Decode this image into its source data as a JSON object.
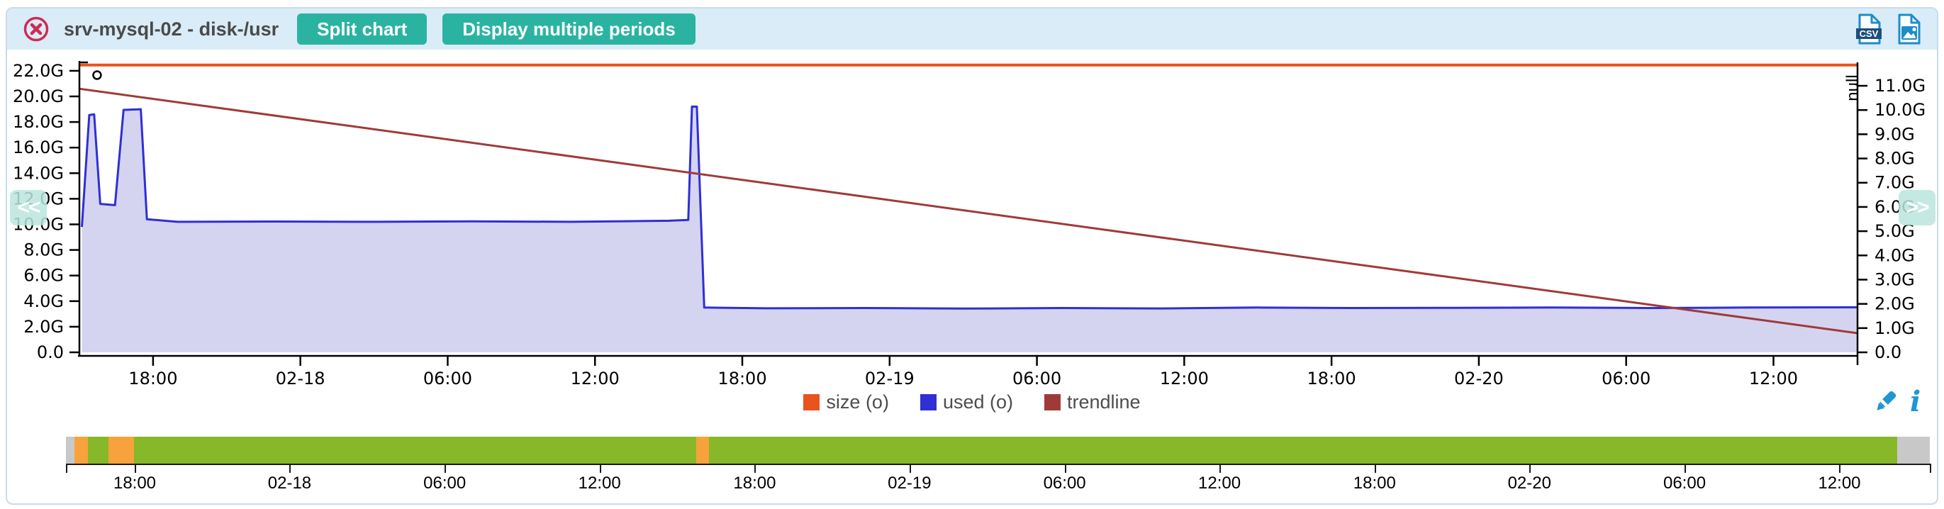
{
  "header": {
    "title": "srv-mysql-02 - disk-/usr",
    "split_button": "Split chart",
    "multi_periods_button": "Display multiple periods",
    "export": {
      "csv_label": "CSV"
    }
  },
  "nav": {
    "prev": "<<",
    "next": ">>"
  },
  "legend": {
    "items": [
      {
        "label": "size (o)",
        "color": "#e9531d"
      },
      {
        "label": "used (o)",
        "color": "#2f2fd4"
      },
      {
        "label": "trendline",
        "color": "#9e3b39"
      }
    ]
  },
  "chart_data": {
    "type": "area",
    "title": "srv-mysql-02 - disk-/usr",
    "x_axis": {
      "unit": "time",
      "tick_interval_hours": 6,
      "hours_span": 72.4,
      "ticks": [
        {
          "h": 3,
          "label": "18:00"
        },
        {
          "h": 9,
          "label": "02-18"
        },
        {
          "h": 15,
          "label": "06:00"
        },
        {
          "h": 21,
          "label": "12:00"
        },
        {
          "h": 27,
          "label": "18:00"
        },
        {
          "h": 33,
          "label": "02-19"
        },
        {
          "h": 39,
          "label": "06:00"
        },
        {
          "h": 45,
          "label": "12:00"
        },
        {
          "h": 51,
          "label": "18:00"
        },
        {
          "h": 57,
          "label": "02-20"
        },
        {
          "h": 63,
          "label": "06:00"
        },
        {
          "h": 69,
          "label": "12:00"
        }
      ]
    },
    "left_axis": {
      "unit": "G",
      "min": 0,
      "max": 22.9,
      "tick_step": 2,
      "tick_labels": [
        "0.0",
        "2.0G",
        "4.0G",
        "6.0G",
        "8.0G",
        "10.0G",
        "12.0G",
        "14.0G",
        "16.0G",
        "18.0G",
        "20.0G",
        "22.0G"
      ]
    },
    "right_axis": {
      "label": "null",
      "min": 0,
      "max": 11.6,
      "tick_step": 1,
      "tick_labels": [
        "0.0",
        "1.0G",
        "2.0G",
        "3.0G",
        "4.0G",
        "5.0G",
        "6.0G",
        "7.0G",
        "8.0G",
        "9.0G",
        "10.0G",
        "11.0G"
      ]
    },
    "series": [
      {
        "name": "size (o)",
        "type": "line",
        "color": "#e9531d",
        "width": 4,
        "points": [
          [
            0,
            22.45
          ],
          [
            72.4,
            22.45
          ]
        ]
      },
      {
        "name": "used (o)",
        "type": "area",
        "color": "#2f2fd4",
        "fill": "#d4d4f1",
        "width": 3,
        "points": [
          [
            0.1,
            9.8
          ],
          [
            0.4,
            18.55
          ],
          [
            0.6,
            18.6
          ],
          [
            0.85,
            11.6
          ],
          [
            1.45,
            11.5
          ],
          [
            1.8,
            18.95
          ],
          [
            2.5,
            19.0
          ],
          [
            2.75,
            10.4
          ],
          [
            4,
            10.2
          ],
          [
            8,
            10.22
          ],
          [
            12,
            10.2
          ],
          [
            16,
            10.24
          ],
          [
            20,
            10.2
          ],
          [
            24,
            10.28
          ],
          [
            24.8,
            10.35
          ],
          [
            24.95,
            19.2
          ],
          [
            25.15,
            19.2
          ],
          [
            25.45,
            3.5
          ],
          [
            28,
            3.44
          ],
          [
            32,
            3.46
          ],
          [
            36,
            3.42
          ],
          [
            40,
            3.46
          ],
          [
            44,
            3.43
          ],
          [
            48,
            3.5
          ],
          [
            52,
            3.46
          ],
          [
            56,
            3.48
          ],
          [
            60,
            3.5
          ],
          [
            64,
            3.46
          ],
          [
            68,
            3.5
          ],
          [
            72.4,
            3.52
          ]
        ]
      },
      {
        "name": "trendline",
        "type": "line",
        "color": "#9e3b39",
        "width": 3,
        "points": [
          [
            0,
            20.6
          ],
          [
            72.4,
            1.5
          ]
        ]
      }
    ],
    "annotations": [
      {
        "marker": "o",
        "h": 0.72,
        "value": 21.66
      }
    ],
    "grid": false,
    "legend_position": "bottom-center"
  },
  "timeline": {
    "colors": {
      "green": "#86b829",
      "orange": "#f7a23d",
      "gray": "#c8c8c8"
    },
    "segments": [
      {
        "color": "gray",
        "from_pct": 0,
        "to_pct": 0.46
      },
      {
        "color": "orange",
        "from_pct": 0.46,
        "to_pct": 1.18
      },
      {
        "color": "green",
        "from_pct": 1.18,
        "to_pct": 2.28
      },
      {
        "color": "orange",
        "from_pct": 2.28,
        "to_pct": 3.65
      },
      {
        "color": "green",
        "from_pct": 3.65,
        "to_pct": 33.81
      },
      {
        "color": "orange",
        "from_pct": 33.81,
        "to_pct": 34.5
      },
      {
        "color": "green",
        "from_pct": 34.5,
        "to_pct": 98.25
      },
      {
        "color": "gray",
        "from_pct": 98.25,
        "to_pct": 100
      }
    ],
    "ticks": [
      {
        "pct": 3.69,
        "label": "18:00"
      },
      {
        "pct": 12.0,
        "label": "02-18"
      },
      {
        "pct": 20.32,
        "label": "06:00"
      },
      {
        "pct": 28.63,
        "label": "12:00"
      },
      {
        "pct": 36.95,
        "label": "18:00"
      },
      {
        "pct": 45.26,
        "label": "02-19"
      },
      {
        "pct": 53.58,
        "label": "06:00"
      },
      {
        "pct": 61.89,
        "label": "12:00"
      },
      {
        "pct": 70.21,
        "label": "18:00"
      },
      {
        "pct": 78.52,
        "label": "02-20"
      },
      {
        "pct": 86.84,
        "label": "06:00"
      },
      {
        "pct": 95.15,
        "label": "12:00"
      }
    ],
    "end_ticks": true
  },
  "colors": {
    "header_bg": "#d9ecf7",
    "accent_teal": "#2bb3a2",
    "close_red": "#ce2b52",
    "icon_blue": "#1d8dc9",
    "icon_navy": "#1d4f7c",
    "tool_blue": "#2196d3",
    "frame_border": "#c9dcea",
    "axis": "#000000"
  }
}
